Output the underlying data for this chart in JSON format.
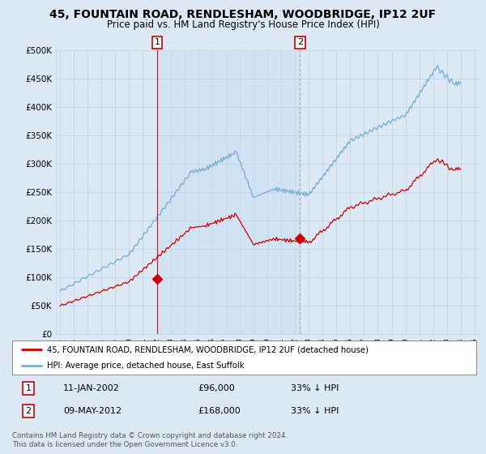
{
  "title": "45, FOUNTAIN ROAD, RENDLESHAM, WOODBRIDGE, IP12 2UF",
  "subtitle": "Price paid vs. HM Land Registry's House Price Index (HPI)",
  "background_color": "#dce9f5",
  "grid_color": "#c8d8e8",
  "highlight_color": "#c5d9ee",
  "red_color": "#cc0000",
  "blue_color": "#7ab0d4",
  "ylim": [
    0,
    500000
  ],
  "yticks": [
    0,
    50000,
    100000,
    150000,
    200000,
    250000,
    300000,
    350000,
    400000,
    450000,
    500000
  ],
  "ytick_labels": [
    "£0",
    "£50K",
    "£100K",
    "£150K",
    "£200K",
    "£250K",
    "£300K",
    "£350K",
    "£400K",
    "£450K",
    "£500K"
  ],
  "purchase1_year": 2002.04,
  "purchase1_price": 96000,
  "purchase1_label": "1",
  "purchase2_year": 2012.37,
  "purchase2_price": 168000,
  "purchase2_label": "2",
  "legend_line1": "45, FOUNTAIN ROAD, RENDLESHAM, WOODBRIDGE, IP12 2UF (detached house)",
  "legend_line2": "HPI: Average price, detached house, East Suffolk",
  "note1_label": "1",
  "note1_date": "11-JAN-2002",
  "note1_price": "£96,000",
  "note1_pct": "33% ↓ HPI",
  "note2_label": "2",
  "note2_date": "09-MAY-2012",
  "note2_price": "£168,000",
  "note2_pct": "33% ↓ HPI",
  "copyright": "Contains HM Land Registry data © Crown copyright and database right 2024.\nThis data is licensed under the Open Government Licence v3.0.",
  "xlim_left": 1994.7,
  "xlim_right": 2025.3
}
